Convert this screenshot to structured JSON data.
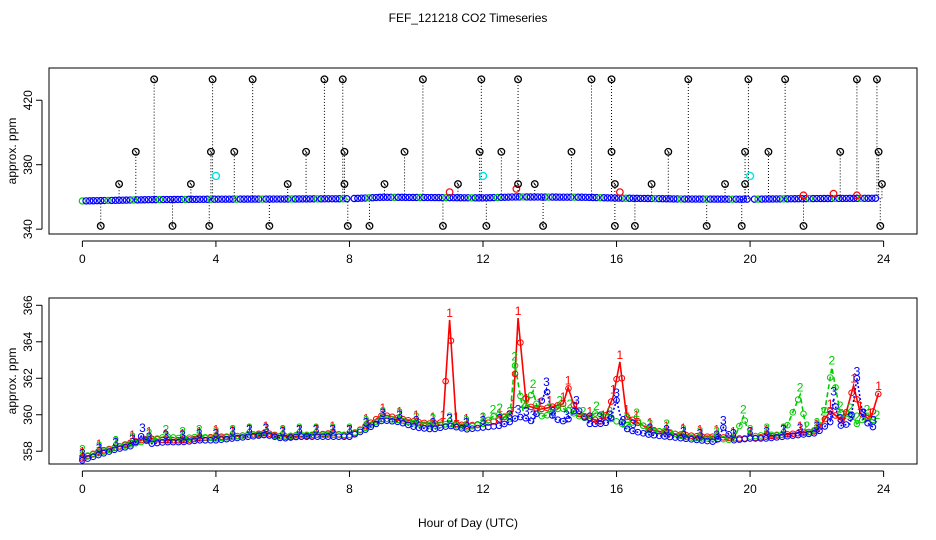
{
  "title": "FEF_121218  CO2 Timeseries",
  "xlabel": "Hour of Day (UTC)",
  "colors": {
    "black": "#000000",
    "red": "#ff0000",
    "green": "#00cc00",
    "blue": "#0000ff",
    "cyan": "#00e5e5",
    "orange": "#ff9900"
  },
  "chart_data": [
    {
      "type": "scatter",
      "panel": "top",
      "ylabel": "approx. ppm",
      "xlim": [
        -1,
        25
      ],
      "ylim": [
        337,
        440
      ],
      "xticks": [
        0,
        4,
        8,
        12,
        16,
        20,
        24
      ],
      "yticks": [
        340,
        380,
        420
      ],
      "ytick_labels": [
        "340",
        "380",
        "420"
      ],
      "baseline": [
        [
          0,
          357.5
        ],
        [
          2,
          358.3
        ],
        [
          4,
          358.6
        ],
        [
          6,
          358.7
        ],
        [
          8,
          358.9
        ],
        [
          9,
          359.8
        ],
        [
          12,
          359.4
        ],
        [
          13,
          360.0
        ],
        [
          15,
          359.8
        ],
        [
          16,
          359.3
        ],
        [
          18,
          358.7
        ],
        [
          20,
          358.6
        ],
        [
          22,
          359.0
        ],
        [
          24,
          359.2
        ]
      ],
      "spikes_high": [
        2.15,
        3.9,
        5.1,
        7.25,
        7.8,
        10.2,
        11.95,
        13.05,
        15.25,
        15.85,
        18.15,
        19.95,
        21.05,
        23.2,
        23.8
      ],
      "spike_high_value": 433,
      "spikes_mid": [
        1.6,
        3.85,
        4.55,
        6.7,
        7.85,
        9.65,
        11.9,
        12.55,
        14.65,
        15.85,
        17.55,
        19.85,
        20.55,
        22.7,
        23.85
      ],
      "spike_mid_value": 388,
      "spikes_small": [
        1.1,
        3.25,
        6.15,
        7.85,
        9.05,
        11.25,
        13.05,
        13.55,
        15.95,
        17.05,
        19.25,
        19.85,
        23.95
      ],
      "spike_small_value": 368,
      "spikes_low": [
        0.55,
        2.7,
        3.8,
        5.6,
        7.95,
        8.6,
        10.8,
        12.1,
        13.8,
        15.95,
        16.55,
        18.7,
        19.75,
        21.6,
        23.9
      ],
      "spike_low_value": 342,
      "cyan_points": [
        [
          4.0,
          373
        ],
        [
          12.0,
          373
        ],
        [
          20.0,
          373
        ]
      ],
      "red_points": [
        [
          11.0,
          363
        ],
        [
          13.0,
          365
        ],
        [
          16.1,
          363
        ],
        [
          21.6,
          361
        ],
        [
          22.5,
          362
        ],
        [
          23.2,
          361
        ]
      ]
    },
    {
      "type": "line",
      "panel": "bottom",
      "ylabel": "approx. ppm",
      "xlim": [
        -1,
        25
      ],
      "ylim": [
        357.3,
        366.4
      ],
      "xticks": [
        0,
        4,
        8,
        12,
        16,
        20,
        24
      ],
      "yticks": [
        358,
        360,
        362,
        364,
        366
      ],
      "series": [
        {
          "name": "1",
          "color": "#ff0000",
          "points": [
            [
              0,
              357.6
            ],
            [
              0.5,
              358.0
            ],
            [
              1.0,
              358.2
            ],
            [
              1.5,
              358.5
            ],
            [
              2.0,
              358.7
            ],
            [
              2.5,
              358.6
            ],
            [
              3.0,
              358.6
            ],
            [
              3.5,
              358.7
            ],
            [
              4.0,
              358.8
            ],
            [
              4.5,
              358.8
            ],
            [
              5.0,
              358.9
            ],
            [
              5.5,
              359.0
            ],
            [
              6.0,
              358.8
            ],
            [
              6.5,
              358.8
            ],
            [
              7.0,
              358.9
            ],
            [
              7.5,
              359.0
            ],
            [
              8.0,
              358.8
            ],
            [
              8.5,
              359.4
            ],
            [
              9.0,
              360.0
            ],
            [
              9.5,
              359.8
            ],
            [
              10.0,
              359.6
            ],
            [
              10.5,
              359.5
            ],
            [
              10.8,
              359.6
            ],
            [
              11.0,
              365.2
            ],
            [
              11.2,
              359.5
            ],
            [
              11.5,
              359.4
            ],
            [
              12.0,
              359.5
            ],
            [
              12.5,
              359.7
            ],
            [
              12.9,
              360.2
            ],
            [
              13.05,
              365.3
            ],
            [
              13.3,
              360.5
            ],
            [
              13.7,
              360.3
            ],
            [
              14.0,
              360.4
            ],
            [
              14.4,
              360.6
            ],
            [
              14.55,
              361.5
            ],
            [
              14.8,
              360.1
            ],
            [
              15.2,
              359.8
            ],
            [
              15.6,
              359.6
            ],
            [
              15.9,
              361.0
            ],
            [
              16.1,
              362.9
            ],
            [
              16.3,
              359.9
            ],
            [
              16.6,
              359.6
            ],
            [
              17.0,
              359.2
            ],
            [
              17.5,
              359.0
            ],
            [
              18.0,
              358.9
            ],
            [
              18.5,
              358.8
            ],
            [
              19.0,
              358.8
            ],
            [
              19.5,
              358.7
            ],
            [
              20.0,
              358.7
            ],
            [
              20.5,
              358.8
            ],
            [
              21.0,
              358.9
            ],
            [
              21.5,
              359.0
            ],
            [
              22.0,
              359.1
            ],
            [
              22.4,
              360.2
            ],
            [
              22.8,
              359.6
            ],
            [
              23.1,
              361.6
            ],
            [
              23.3,
              360.1
            ],
            [
              23.6,
              359.7
            ],
            [
              23.85,
              361.2
            ]
          ]
        },
        {
          "name": "2",
          "color": "#00cc00",
          "points": [
            [
              0,
              357.7
            ],
            [
              0.5,
              357.9
            ],
            [
              1.0,
              358.2
            ],
            [
              1.5,
              358.4
            ],
            [
              2.0,
              358.6
            ],
            [
              2.5,
              358.8
            ],
            [
              3.0,
              358.7
            ],
            [
              3.5,
              358.8
            ],
            [
              4.0,
              358.7
            ],
            [
              4.5,
              358.8
            ],
            [
              5.0,
              358.9
            ],
            [
              5.5,
              358.9
            ],
            [
              6.0,
              358.8
            ],
            [
              6.5,
              358.9
            ],
            [
              7.0,
              358.9
            ],
            [
              7.5,
              358.9
            ],
            [
              8.0,
              358.9
            ],
            [
              8.5,
              359.3
            ],
            [
              9.0,
              359.8
            ],
            [
              9.5,
              359.7
            ],
            [
              10.0,
              359.5
            ],
            [
              10.5,
              359.4
            ],
            [
              11.0,
              359.5
            ],
            [
              11.5,
              359.3
            ],
            [
              12.0,
              359.5
            ],
            [
              12.3,
              359.9
            ],
            [
              12.5,
              360.0
            ],
            [
              12.8,
              359.8
            ],
            [
              12.95,
              362.8
            ],
            [
              13.2,
              360.2
            ],
            [
              13.5,
              361.3
            ],
            [
              13.7,
              359.9
            ],
            [
              14.0,
              360.0
            ],
            [
              14.3,
              360.4
            ],
            [
              14.6,
              360.2
            ],
            [
              15.0,
              359.8
            ],
            [
              15.4,
              360.1
            ],
            [
              15.8,
              359.8
            ],
            [
              16.3,
              359.4
            ],
            [
              16.6,
              359.7
            ],
            [
              17.0,
              359.1
            ],
            [
              17.5,
              359.1
            ],
            [
              18.0,
              358.8
            ],
            [
              18.5,
              358.7
            ],
            [
              19.0,
              358.7
            ],
            [
              19.5,
              358.6
            ],
            [
              19.8,
              359.9
            ],
            [
              20.0,
              358.8
            ],
            [
              20.5,
              358.9
            ],
            [
              21.0,
              358.9
            ],
            [
              21.5,
              361.1
            ],
            [
              21.7,
              359.0
            ],
            [
              22.0,
              359.2
            ],
            [
              22.2,
              359.8
            ],
            [
              22.45,
              362.6
            ],
            [
              22.7,
              360.1
            ],
            [
              23.0,
              360.0
            ],
            [
              23.2,
              359.5
            ],
            [
              23.5,
              359.9
            ],
            [
              23.8,
              359.6
            ]
          ]
        },
        {
          "name": "3",
          "color": "#0000ff",
          "points": [
            [
              0,
              357.5
            ],
            [
              0.5,
              357.8
            ],
            [
              1.0,
              358.1
            ],
            [
              1.5,
              358.3
            ],
            [
              1.8,
              358.9
            ],
            [
              2.0,
              358.4
            ],
            [
              2.5,
              358.5
            ],
            [
              3.0,
              358.5
            ],
            [
              3.5,
              358.6
            ],
            [
              4.0,
              358.6
            ],
            [
              4.5,
              358.7
            ],
            [
              5.0,
              358.8
            ],
            [
              5.5,
              358.9
            ],
            [
              6.0,
              358.7
            ],
            [
              6.5,
              358.8
            ],
            [
              7.0,
              358.8
            ],
            [
              7.5,
              358.8
            ],
            [
              8.0,
              358.8
            ],
            [
              8.5,
              359.2
            ],
            [
              9.0,
              359.7
            ],
            [
              9.5,
              359.6
            ],
            [
              10.0,
              359.3
            ],
            [
              10.5,
              359.2
            ],
            [
              11.0,
              359.4
            ],
            [
              11.5,
              359.2
            ],
            [
              12.0,
              359.3
            ],
            [
              12.5,
              359.4
            ],
            [
              12.8,
              359.6
            ],
            [
              13.05,
              359.9
            ],
            [
              13.3,
              359.8
            ],
            [
              13.5,
              359.6
            ],
            [
              13.9,
              361.4
            ],
            [
              14.1,
              359.8
            ],
            [
              14.5,
              359.6
            ],
            [
              14.8,
              360.4
            ],
            [
              15.2,
              359.5
            ],
            [
              15.5,
              359.5
            ],
            [
              15.8,
              359.6
            ],
            [
              16.0,
              360.8
            ],
            [
              16.2,
              359.3
            ],
            [
              16.5,
              359.1
            ],
            [
              17.0,
              358.9
            ],
            [
              17.5,
              358.8
            ],
            [
              18.0,
              358.7
            ],
            [
              18.5,
              358.6
            ],
            [
              19.0,
              358.5
            ],
            [
              19.2,
              359.3
            ],
            [
              19.5,
              358.6
            ],
            [
              20.0,
              358.7
            ],
            [
              20.5,
              358.7
            ],
            [
              21.0,
              358.8
            ],
            [
              21.5,
              358.9
            ],
            [
              22.0,
              359.0
            ],
            [
              22.4,
              359.6
            ],
            [
              22.5,
              360.9
            ],
            [
              22.7,
              359.4
            ],
            [
              23.0,
              359.5
            ],
            [
              23.2,
              362.0
            ],
            [
              23.4,
              359.7
            ],
            [
              23.7,
              359.3
            ]
          ]
        }
      ]
    }
  ]
}
